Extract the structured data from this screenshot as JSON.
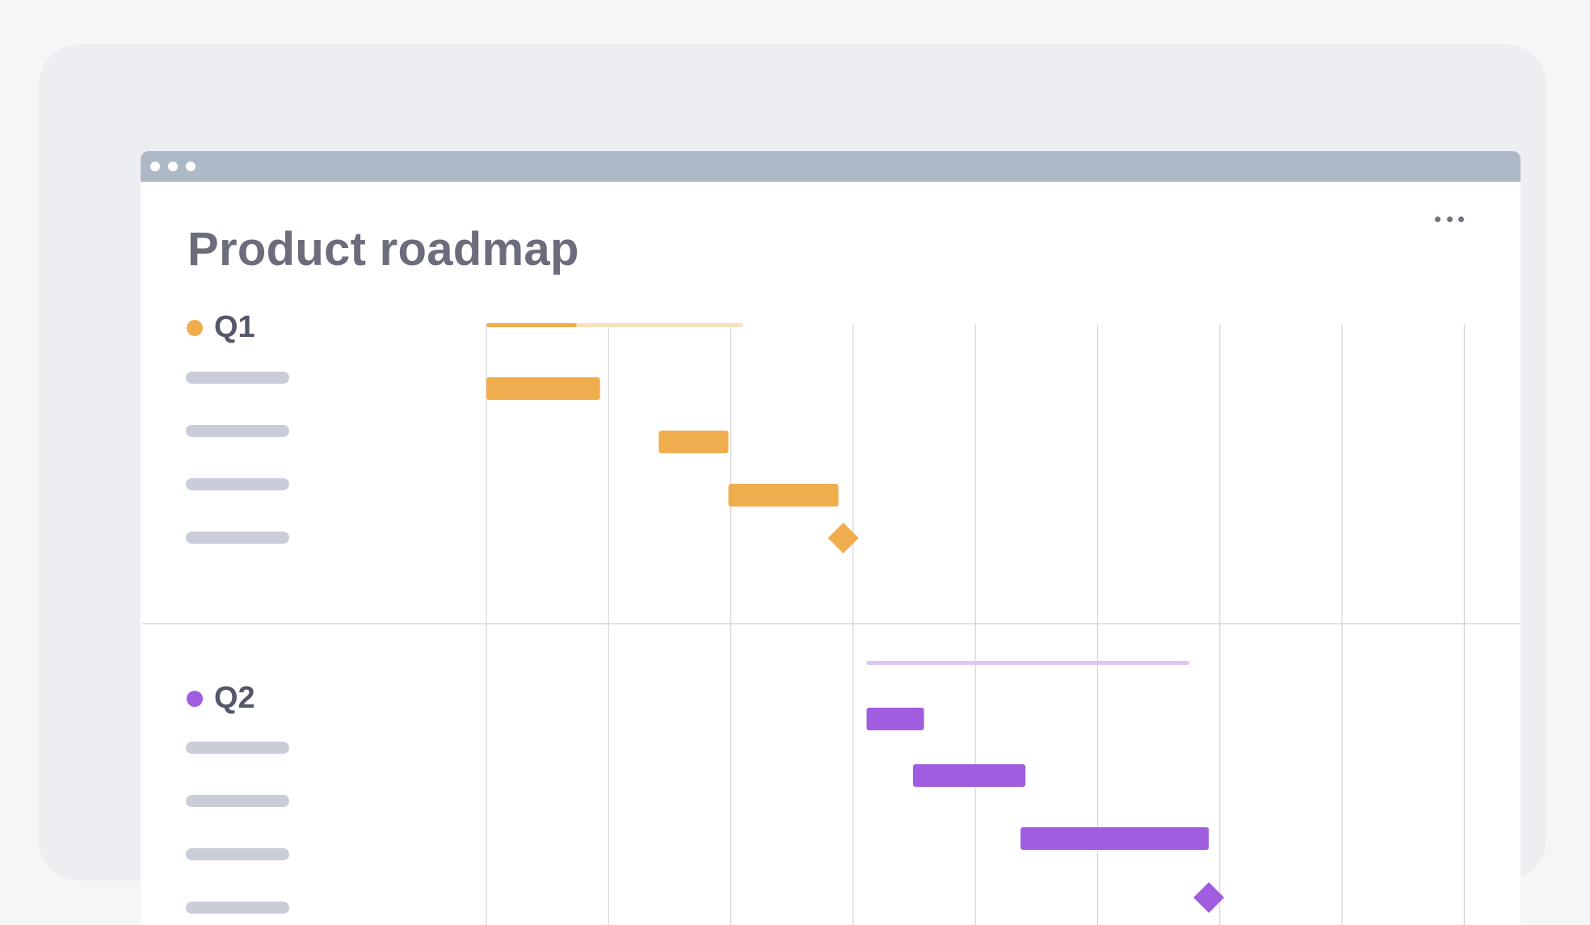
{
  "window": {
    "title_dots": 3
  },
  "page": {
    "title": "Product roadmap",
    "more_icon": "more-horizontal-icon"
  },
  "colors": {
    "background": "#f5f6f8",
    "outer_card": "#eceef2",
    "titlebar": "#aeb9c8",
    "q1": "#f0ad4e",
    "q1_light": "#f9e1bd",
    "q2": "#a05ddf",
    "q2_light": "#ddc6f3",
    "placeholder": "#c9cdd8",
    "grid": "#d3d5db"
  },
  "groups": [
    {
      "label": "Q1",
      "color_key": "q1",
      "summary_span": [
        0,
        2.1
      ],
      "summary_progress": [
        0,
        0.74
      ],
      "tasks": [
        {
          "start": 0,
          "end": 0.93
        },
        {
          "start": 1.41,
          "end": 1.98
        },
        {
          "start": 1.98,
          "end": 2.88
        }
      ],
      "milestone": 2.92
    },
    {
      "label": "Q2",
      "color_key": "q2",
      "summary_span": [
        3.11,
        5.75
      ],
      "tasks": [
        {
          "start": 3.11,
          "end": 3.58
        },
        {
          "start": 3.49,
          "end": 4.41
        },
        {
          "start": 4.37,
          "end": 5.91
        }
      ],
      "milestone": 5.91
    }
  ],
  "timeline": {
    "columns": 8
  }
}
